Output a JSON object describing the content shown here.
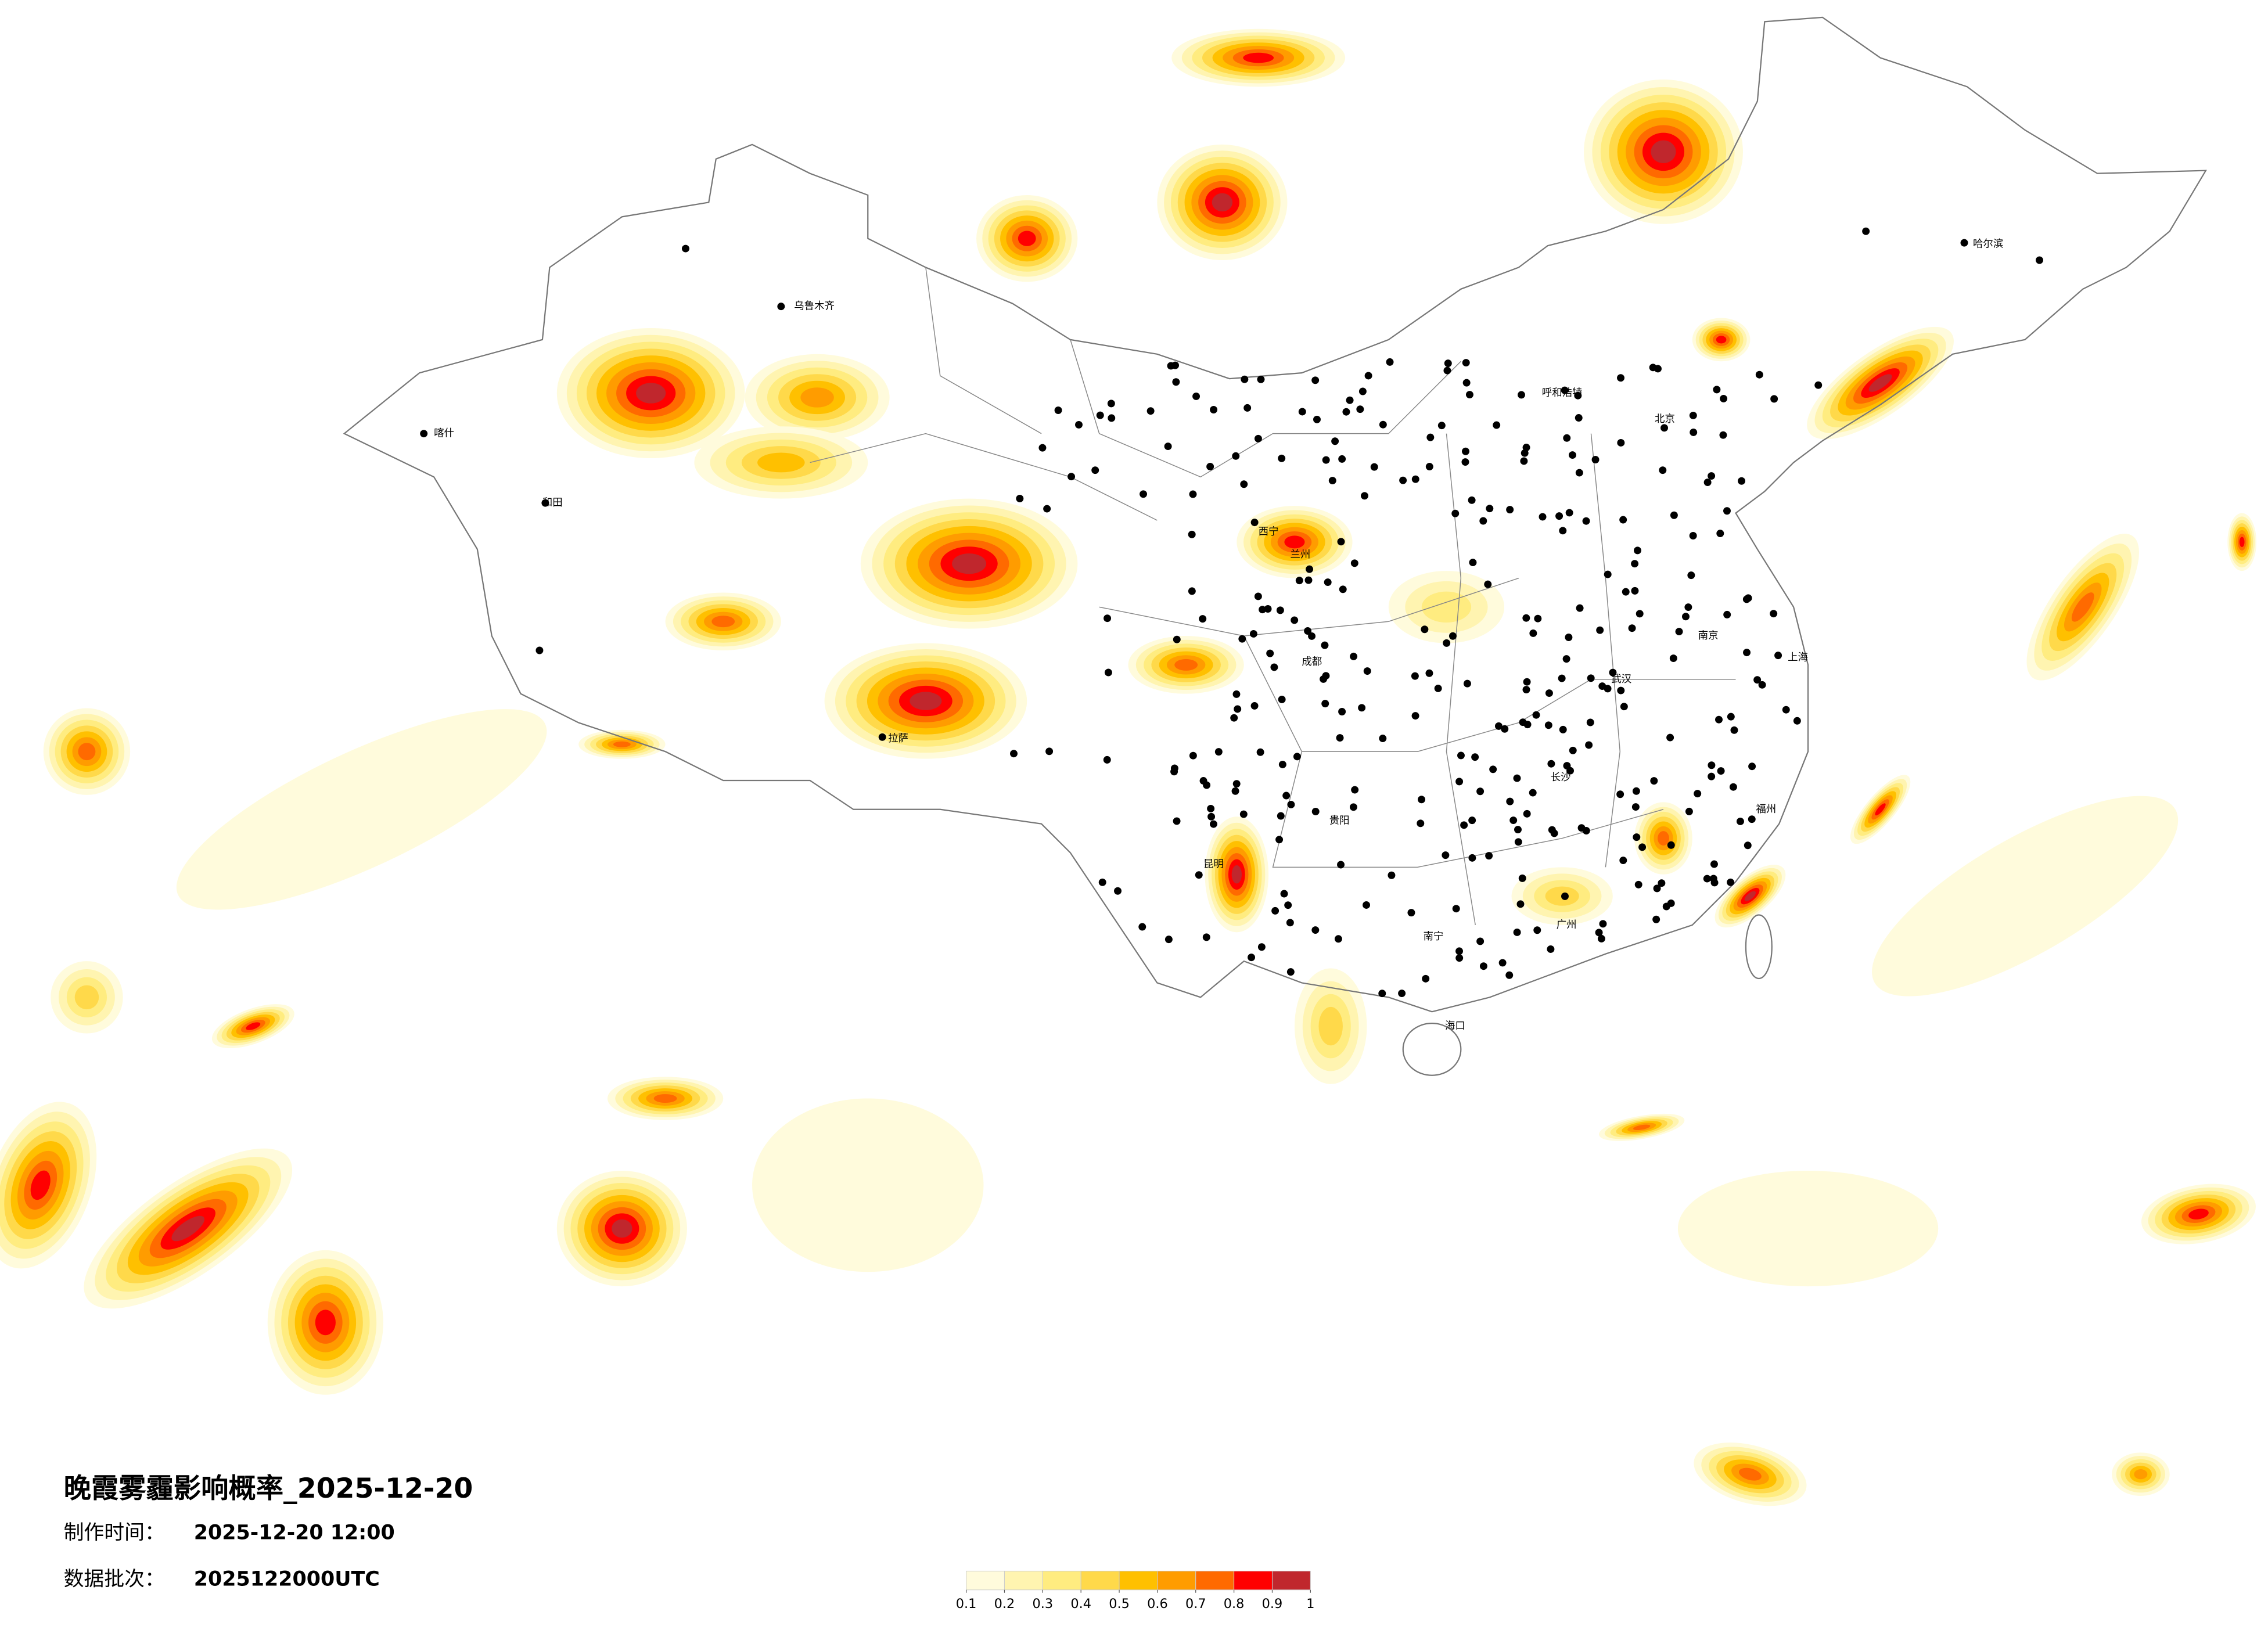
{
  "title": "晚霞雾霾影响概率_2025-12-20",
  "info": [
    {
      "label": "制作时间：",
      "value": "2025-12-20 12:00"
    },
    {
      "label": "数据批次：",
      "value": "2025122000UTC"
    }
  ],
  "legend": {
    "colors": [
      "#fffbdc",
      "#fff4b0",
      "#ffec80",
      "#ffd94a",
      "#ffc000",
      "#ff9c00",
      "#ff6a00",
      "#ff0000",
      "#c0272d"
    ],
    "ticks": [
      0.1,
      0.2,
      0.3,
      0.4,
      0.5,
      0.6,
      0.7,
      0.8,
      0.9,
      1
    ]
  },
  "map": {
    "cities": [
      "乌鲁木齐",
      "喀什",
      "和田",
      "北京",
      "上海",
      "广州",
      "拉萨",
      "哈尔滨",
      "长沙",
      "贵阳",
      "昆明",
      "成都",
      "西宁",
      "兰州",
      "武汉",
      "南京",
      "福州",
      "南宁",
      "海口",
      "呼和浩特"
    ]
  }
}
